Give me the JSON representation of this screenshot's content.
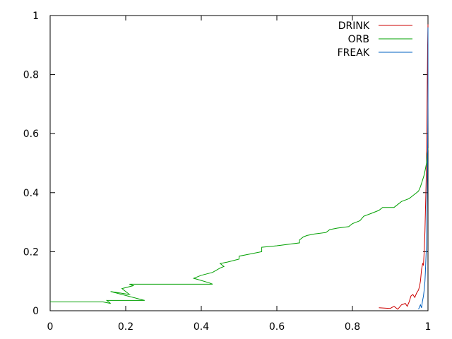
{
  "chart_data": {
    "type": "line",
    "xlim": [
      0,
      1
    ],
    "ylim": [
      0,
      1
    ],
    "x_ticks": [
      {
        "value": 0,
        "label": "0"
      },
      {
        "value": 0.2,
        "label": "0.2"
      },
      {
        "value": 0.4,
        "label": "0.4"
      },
      {
        "value": 0.6,
        "label": "0.6"
      },
      {
        "value": 0.8,
        "label": "0.8"
      },
      {
        "value": 1,
        "label": "1"
      }
    ],
    "y_ticks": [
      {
        "value": 0,
        "label": "0"
      },
      {
        "value": 0.2,
        "label": "0.2"
      },
      {
        "value": 0.4,
        "label": "0.4"
      },
      {
        "value": 0.6,
        "label": "0.6"
      },
      {
        "value": 0.8,
        "label": "0.8"
      },
      {
        "value": 1,
        "label": "1"
      }
    ],
    "grid": false,
    "legend_position": "top-right",
    "series": [
      {
        "name": "DRINK",
        "color": "#cc0000",
        "points": [
          [
            0.87,
            0.01
          ],
          [
            0.9,
            0.008
          ],
          [
            0.91,
            0.015
          ],
          [
            0.92,
            0.005
          ],
          [
            0.93,
            0.02
          ],
          [
            0.94,
            0.025
          ],
          [
            0.945,
            0.015
          ],
          [
            0.95,
            0.03
          ],
          [
            0.955,
            0.05
          ],
          [
            0.96,
            0.055
          ],
          [
            0.965,
            0.045
          ],
          [
            0.97,
            0.06
          ],
          [
            0.975,
            0.07
          ],
          [
            0.978,
            0.085
          ],
          [
            0.98,
            0.1
          ],
          [
            0.983,
            0.14
          ],
          [
            0.986,
            0.16
          ],
          [
            0.988,
            0.155
          ],
          [
            0.99,
            0.2
          ],
          [
            0.992,
            0.27
          ],
          [
            0.994,
            0.38
          ],
          [
            0.995,
            0.43
          ],
          [
            0.996,
            0.5
          ],
          [
            0.997,
            0.6
          ],
          [
            0.998,
            0.75
          ],
          [
            0.999,
            0.9
          ],
          [
            1.0,
            0.97
          ]
        ]
      },
      {
        "name": "ORB",
        "color": "#00a000",
        "points": [
          [
            0.0,
            0.03
          ],
          [
            0.14,
            0.03
          ],
          [
            0.16,
            0.025
          ],
          [
            0.15,
            0.035
          ],
          [
            0.25,
            0.035
          ],
          [
            0.16,
            0.065
          ],
          [
            0.21,
            0.055
          ],
          [
            0.19,
            0.075
          ],
          [
            0.22,
            0.085
          ],
          [
            0.21,
            0.09
          ],
          [
            0.43,
            0.09
          ],
          [
            0.42,
            0.095
          ],
          [
            0.38,
            0.11
          ],
          [
            0.4,
            0.12
          ],
          [
            0.43,
            0.13
          ],
          [
            0.45,
            0.145
          ],
          [
            0.46,
            0.15
          ],
          [
            0.45,
            0.16
          ],
          [
            0.47,
            0.165
          ],
          [
            0.5,
            0.175
          ],
          [
            0.5,
            0.185
          ],
          [
            0.52,
            0.19
          ],
          [
            0.56,
            0.2
          ],
          [
            0.56,
            0.215
          ],
          [
            0.6,
            0.22
          ],
          [
            0.66,
            0.23
          ],
          [
            0.66,
            0.24
          ],
          [
            0.67,
            0.25
          ],
          [
            0.68,
            0.255
          ],
          [
            0.7,
            0.26
          ],
          [
            0.73,
            0.265
          ],
          [
            0.74,
            0.275
          ],
          [
            0.76,
            0.28
          ],
          [
            0.79,
            0.285
          ],
          [
            0.8,
            0.295
          ],
          [
            0.82,
            0.305
          ],
          [
            0.83,
            0.32
          ],
          [
            0.85,
            0.33
          ],
          [
            0.87,
            0.34
          ],
          [
            0.88,
            0.35
          ],
          [
            0.91,
            0.35
          ],
          [
            0.93,
            0.37
          ],
          [
            0.95,
            0.38
          ],
          [
            0.96,
            0.39
          ],
          [
            0.975,
            0.405
          ],
          [
            0.98,
            0.42
          ],
          [
            0.985,
            0.44
          ],
          [
            0.99,
            0.46
          ],
          [
            0.993,
            0.48
          ],
          [
            0.996,
            0.5
          ],
          [
            0.998,
            0.53
          ],
          [
            1.0,
            0.55
          ]
        ]
      },
      {
        "name": "FREAK",
        "color": "#0060c0",
        "points": [
          [
            0.975,
            0.005
          ],
          [
            0.98,
            0.02
          ],
          [
            0.983,
            0.01
          ],
          [
            0.985,
            0.03
          ],
          [
            0.988,
            0.05
          ],
          [
            0.99,
            0.07
          ],
          [
            0.992,
            0.1
          ],
          [
            0.993,
            0.13
          ],
          [
            0.994,
            0.16
          ],
          [
            0.995,
            0.19
          ],
          [
            0.996,
            0.22
          ],
          [
            0.997,
            0.3
          ],
          [
            0.998,
            0.42
          ],
          [
            0.999,
            0.55
          ],
          [
            1.0,
            0.7
          ],
          [
            1.0,
            0.96
          ]
        ]
      }
    ]
  }
}
